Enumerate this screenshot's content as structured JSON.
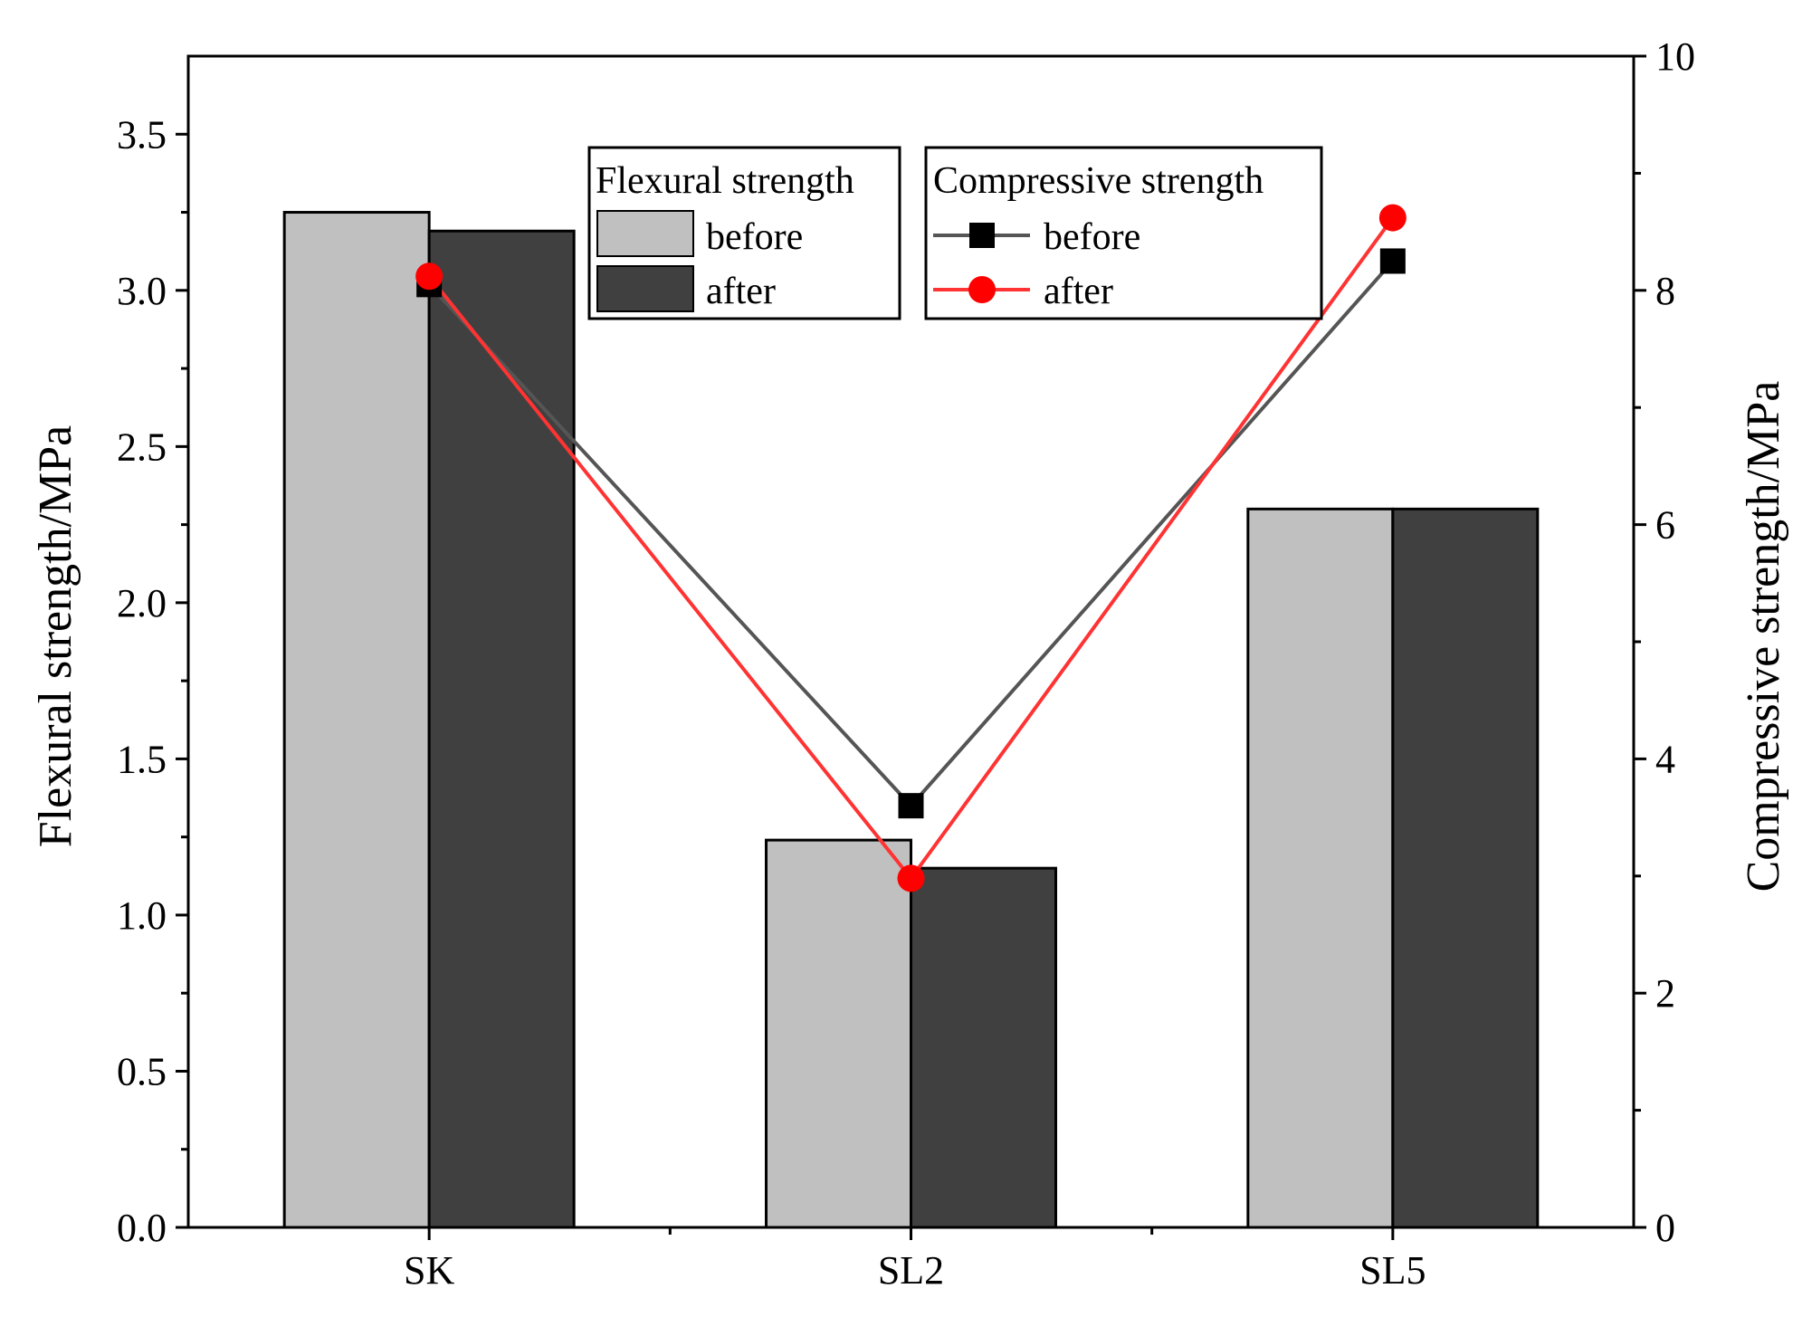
{
  "chart_data": {
    "type": "bar",
    "categories": [
      "SK",
      "SL2",
      "SL5"
    ],
    "left_axis": {
      "label": "Flexural strength/MPa",
      "ylim": [
        0,
        3.75
      ],
      "ticks": [
        "0.0",
        "0.5",
        "1.0",
        "1.5",
        "2.0",
        "2.5",
        "3.0",
        "3.5"
      ],
      "tick_values": [
        0,
        0.5,
        1.0,
        1.5,
        2.0,
        2.5,
        3.0,
        3.5
      ]
    },
    "right_axis": {
      "label": "Compressive strength/MPa",
      "ylim": [
        0,
        10
      ],
      "ticks": [
        "0",
        "2",
        "4",
        "6",
        "8",
        "10"
      ],
      "tick_values": [
        0,
        2,
        4,
        6,
        8,
        10
      ]
    },
    "bar_series": [
      {
        "name": "before",
        "axis": "left",
        "color": "#c0c0c0",
        "values": [
          3.25,
          1.24,
          2.3
        ]
      },
      {
        "name": "after",
        "axis": "left",
        "color": "#404040",
        "values": [
          3.19,
          1.15,
          2.3
        ]
      }
    ],
    "line_series": [
      {
        "name": "before",
        "axis": "right",
        "color": "#555555",
        "marker": "square",
        "marker_color": "#000000",
        "values": [
          8.05,
          3.6,
          8.25
        ]
      },
      {
        "name": "after",
        "axis": "right",
        "color": "#ff3333",
        "marker": "circle",
        "marker_color": "#ff0000",
        "values": [
          8.12,
          2.98,
          8.62
        ]
      }
    ],
    "legends": [
      {
        "title": "Flexural strength",
        "entries": [
          "before",
          "after"
        ],
        "placement": "top-center"
      },
      {
        "title": "Compressive strength",
        "entries": [
          "before",
          "after"
        ],
        "placement": "top-center-right"
      }
    ],
    "grid": false
  }
}
